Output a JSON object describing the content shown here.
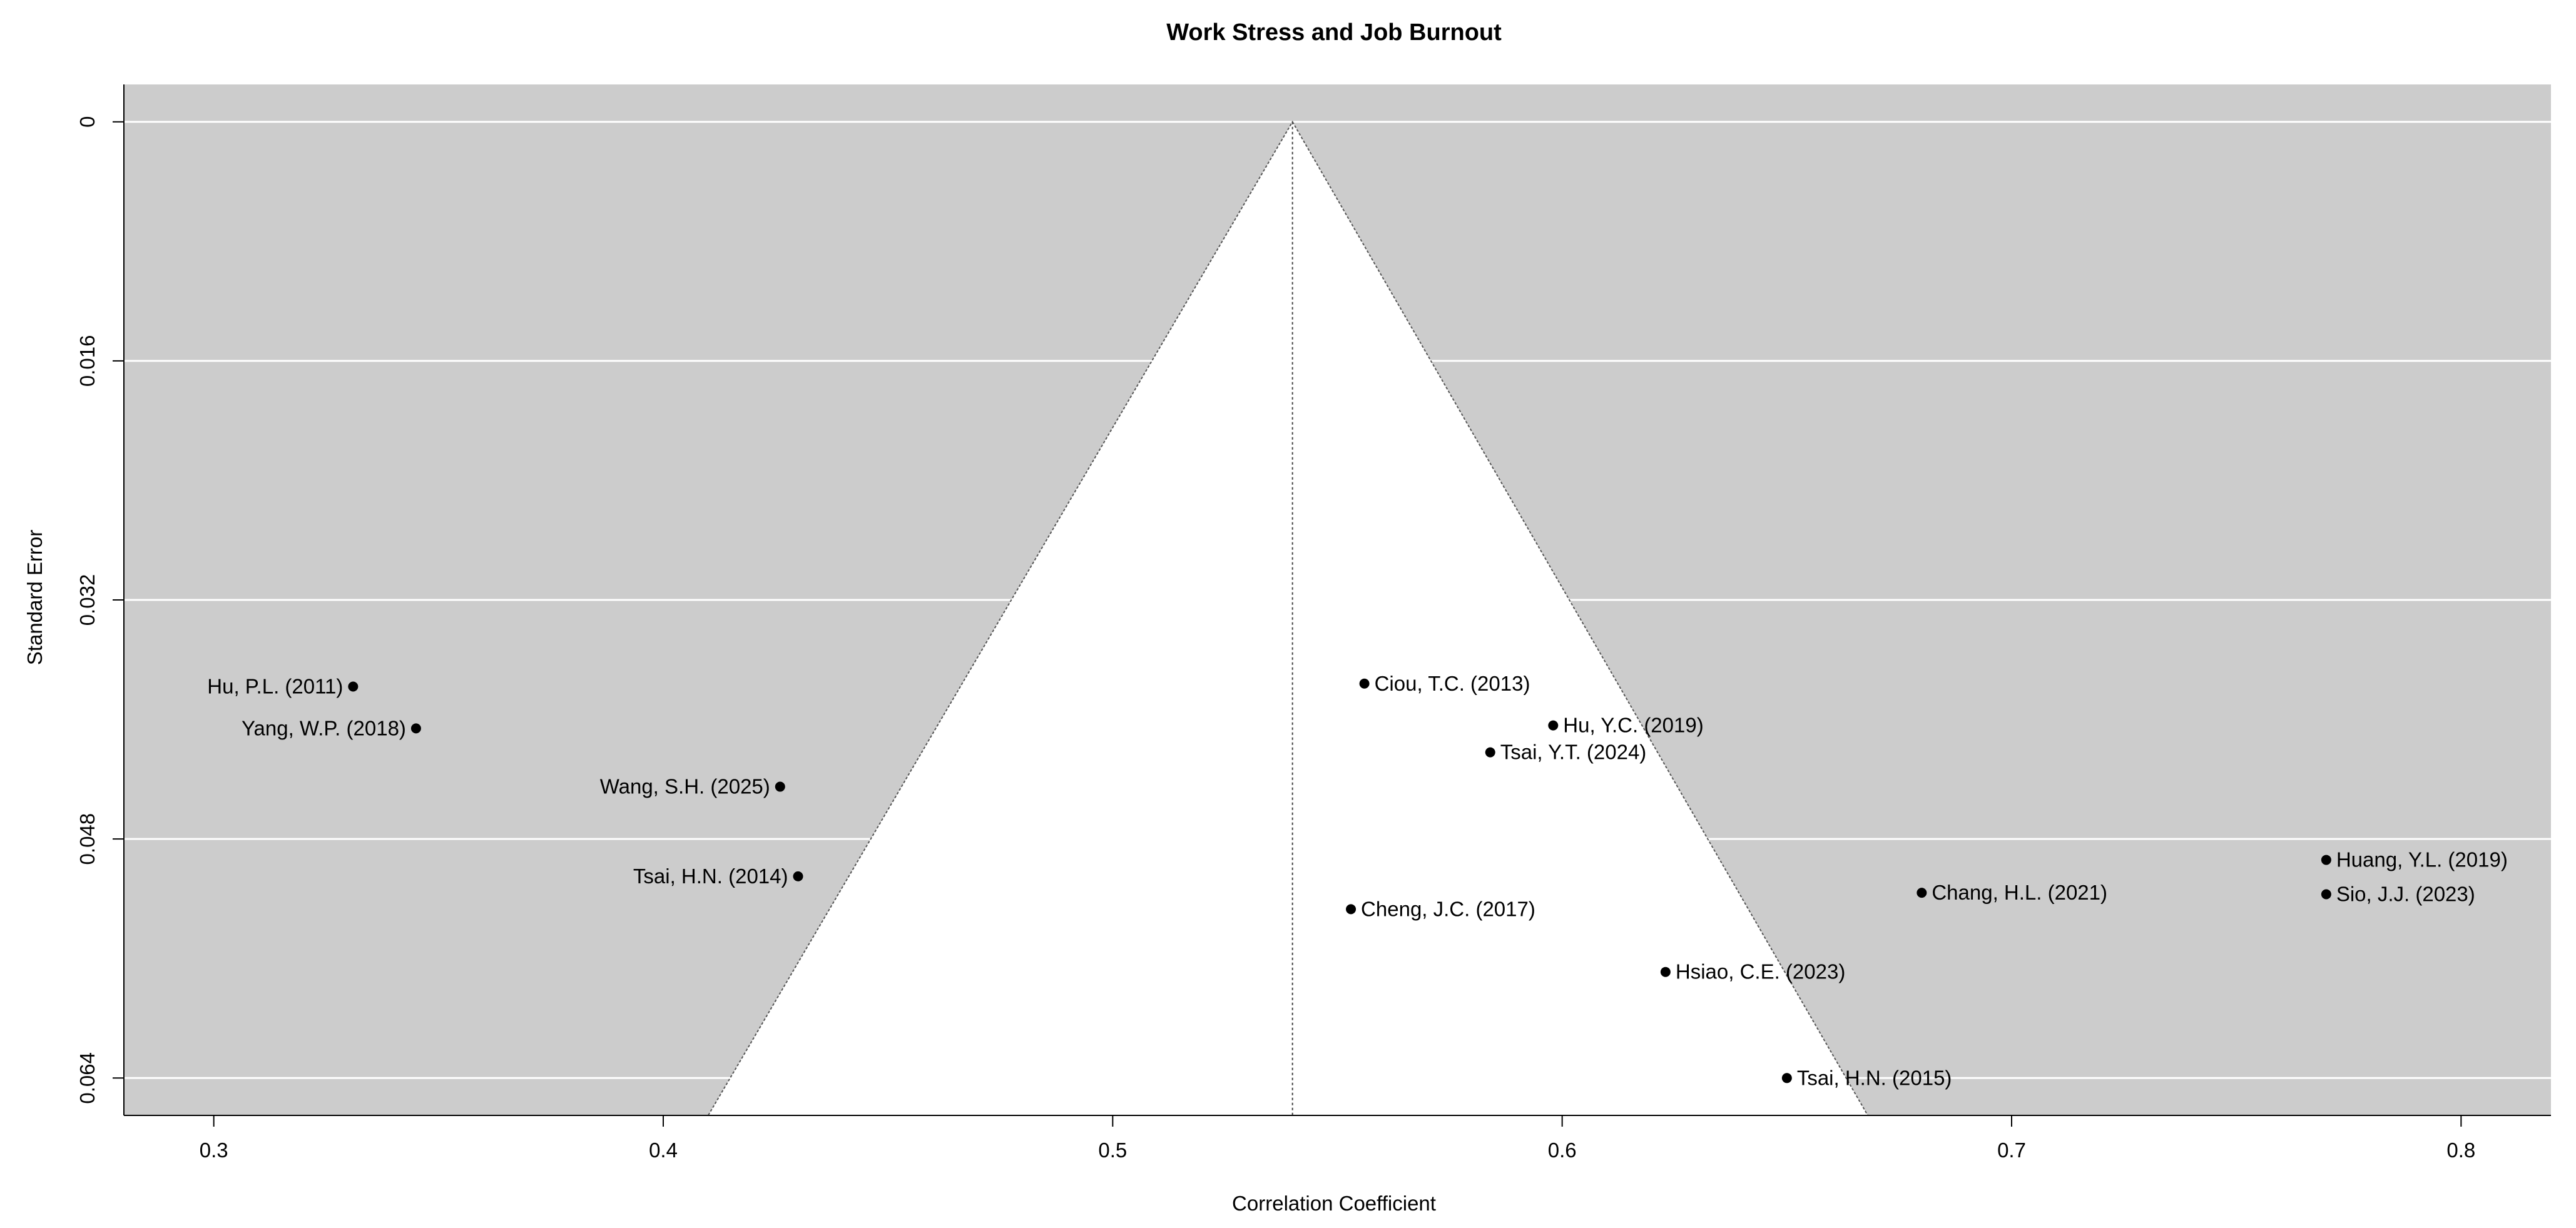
{
  "chart_data": {
    "type": "scatter",
    "title": "Work Stress and Job Burnout",
    "xlabel": "Correlation Coefficient",
    "ylabel": "Standard Error",
    "xlim": [
      0.28,
      0.82
    ],
    "ylim": [
      0.0665,
      -0.0025
    ],
    "y_reversed": true,
    "x_ticks": [
      "0.3",
      "0.4",
      "0.5",
      "0.6",
      "0.7",
      "0.8"
    ],
    "y_ticks": [
      "0",
      "0.016",
      "0.032",
      "0.048",
      "0.064"
    ],
    "grid": "horizontal",
    "background": "#cccccc",
    "funnel": {
      "center": 0.54,
      "lower_bound_at_bottom": 0.41,
      "upper_bound_at_bottom": 0.668
    },
    "points": [
      {
        "label": "Hu, P.L. (2011)",
        "x": 0.331,
        "y": 0.0378,
        "label_side": "left"
      },
      {
        "label": "Yang, W.P. (2018)",
        "x": 0.345,
        "y": 0.0406,
        "label_side": "left"
      },
      {
        "label": "Wang, S.H. (2025)",
        "x": 0.426,
        "y": 0.0445,
        "label_side": "left"
      },
      {
        "label": "Tsai, H.N. (2014)",
        "x": 0.43,
        "y": 0.0505,
        "label_side": "left"
      },
      {
        "label": "Ciou, T.C. (2013)",
        "x": 0.556,
        "y": 0.0376,
        "label_side": "right"
      },
      {
        "label": "Hu, Y.C. (2019)",
        "x": 0.598,
        "y": 0.0404,
        "label_side": "right"
      },
      {
        "label": "Tsai, Y.T. (2024)",
        "x": 0.584,
        "y": 0.0422,
        "label_side": "right"
      },
      {
        "label": "Cheng, J.C. (2017)",
        "x": 0.553,
        "y": 0.0527,
        "label_side": "right"
      },
      {
        "label": "Hsiao, C.E. (2023)",
        "x": 0.623,
        "y": 0.0569,
        "label_side": "right"
      },
      {
        "label": "Tsai, H.N. (2015)",
        "x": 0.65,
        "y": 0.064,
        "label_side": "right"
      },
      {
        "label": "Chang, H.L. (2021)",
        "x": 0.68,
        "y": 0.0516,
        "label_side": "right"
      },
      {
        "label": "Huang, Y.L. (2019)",
        "x": 0.77,
        "y": 0.0494,
        "label_side": "right"
      },
      {
        "label": "Sio, J.J. (2023)",
        "x": 0.77,
        "y": 0.0517,
        "label_side": "right"
      }
    ]
  }
}
